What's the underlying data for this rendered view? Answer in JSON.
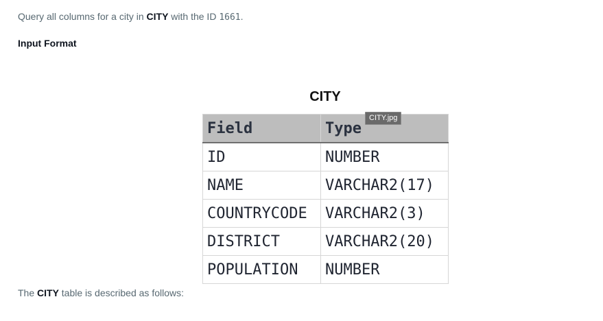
{
  "problem": {
    "text_before": "Query all columns for a city in ",
    "table_name": "CITY",
    "text_middle": " with the ID ",
    "id_value": "1661",
    "text_after": "."
  },
  "input_format": {
    "heading": "Input Format"
  },
  "figure": {
    "title": "CITY",
    "tooltip": "CITY.jpg",
    "headers": [
      "Field",
      "Type"
    ],
    "rows": [
      {
        "field": "ID",
        "type": "NUMBER"
      },
      {
        "field": "NAME",
        "type": "VARCHAR2(17)"
      },
      {
        "field": "COUNTRYCODE",
        "type": "VARCHAR2(3)"
      },
      {
        "field": "DISTRICT",
        "type": "VARCHAR2(20)"
      },
      {
        "field": "POPULATION",
        "type": "NUMBER"
      }
    ]
  },
  "footer": {
    "text_before": "The ",
    "table_name": "CITY",
    "text_after": " table is described as follows:"
  }
}
